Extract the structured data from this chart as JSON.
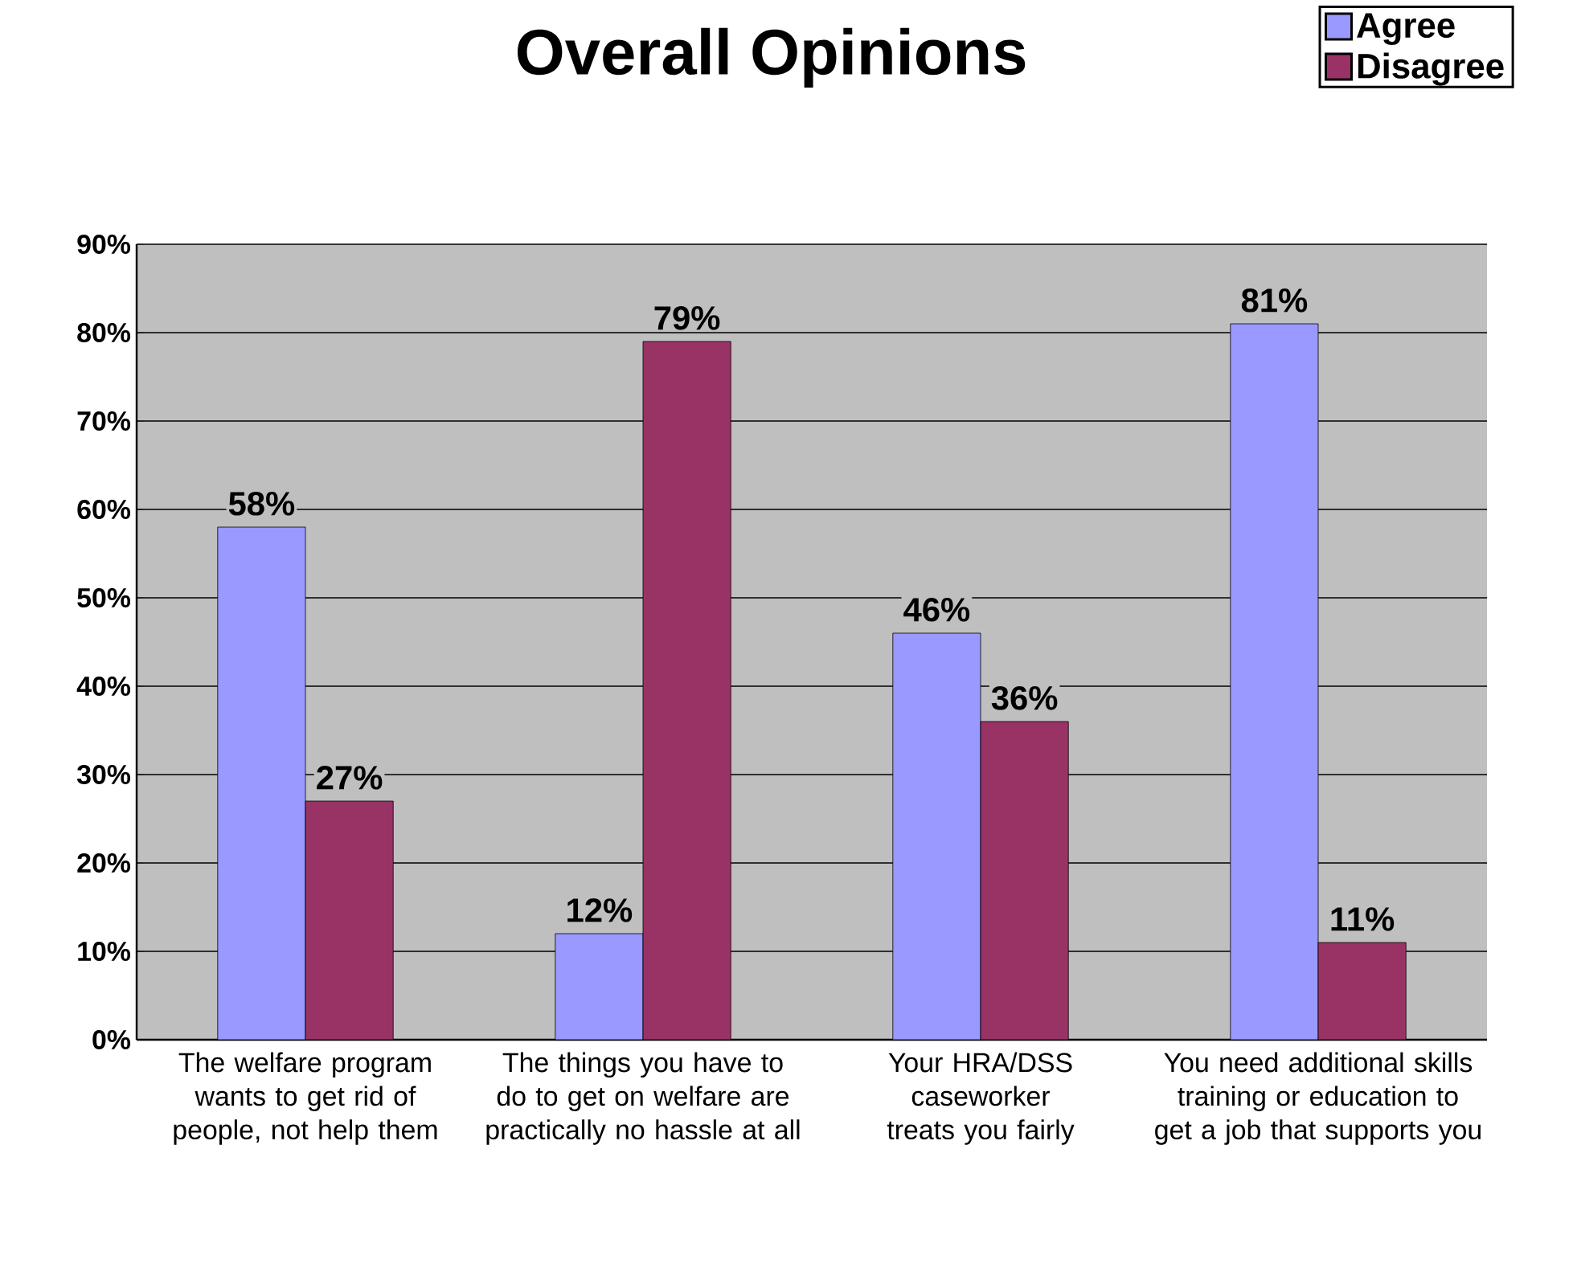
{
  "chart_data": {
    "type": "bar",
    "title": "Overall Opinions",
    "categories": [
      "The welfare program wants to get rid of people, not help them",
      "The things you have to do to get on welfare are practically no hassle at all",
      "Your HRA/DSS caseworker treats you fairly",
      "You need additional skills training or education to get a job that supports you"
    ],
    "series": [
      {
        "name": "Agree",
        "color": "#9999ff",
        "values": [
          58,
          12,
          46,
          81
        ],
        "value_labels": [
          "58%",
          "12%",
          "46%",
          "81%"
        ]
      },
      {
        "name": "Disagree",
        "color": "#993366",
        "values": [
          27,
          79,
          36,
          11
        ],
        "value_labels": [
          "27%",
          "79%",
          "36%",
          "11%"
        ]
      }
    ],
    "ylim": [
      0,
      90
    ],
    "yticks": [
      {
        "value": 0,
        "label": "0%"
      },
      {
        "value": 10,
        "label": "10%"
      },
      {
        "value": 20,
        "label": "20%"
      },
      {
        "value": 30,
        "label": "30%"
      },
      {
        "value": 40,
        "label": "40%"
      },
      {
        "value": 50,
        "label": "50%"
      },
      {
        "value": 60,
        "label": "60%"
      },
      {
        "value": 70,
        "label": "70%"
      },
      {
        "value": 80,
        "label": "80%"
      },
      {
        "value": 90,
        "label": "90%"
      }
    ],
    "grid": "y",
    "legend": "top right"
  }
}
